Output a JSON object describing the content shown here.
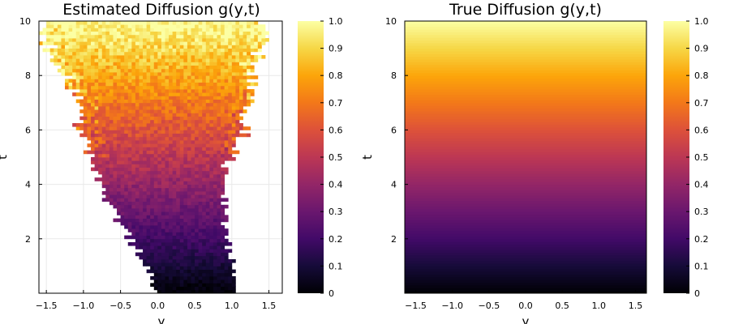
{
  "chart_data": [
    {
      "type": "heatmap",
      "title": "Estimated Diffusion g(y,t)",
      "xlabel": "y",
      "ylabel": "t",
      "xlim": [
        -1.6,
        1.68
      ],
      "ylim": [
        0,
        10
      ],
      "xticks": [
        "−1.5",
        "−1.0",
        "−0.5",
        "0.0",
        "0.5",
        "1.0",
        "1.5"
      ],
      "xtick_values": [
        -1.5,
        -1.0,
        -0.5,
        0.0,
        0.5,
        1.0,
        1.5
      ],
      "yticks": [
        "2",
        "4",
        "6",
        "8",
        "10"
      ],
      "ytick_values": [
        2,
        4,
        6,
        8,
        10
      ],
      "grid": true,
      "colorbar": {
        "colormap": "inferno",
        "range": [
          0,
          1.0
        ],
        "ticks": [
          "0",
          "0.1",
          "0.2",
          "0.3",
          "0.4",
          "0.5",
          "0.6",
          "0.7",
          "0.8",
          "0.9",
          "1.0"
        ]
      },
      "value_function": "g = t/10 with noise",
      "support_envelope": {
        "t": [
          0,
          1,
          2,
          3,
          4,
          5,
          6,
          7,
          8,
          9,
          10
        ],
        "y_min": [
          0.0,
          -0.1,
          -0.35,
          -0.55,
          -0.75,
          -0.85,
          -1.0,
          -1.05,
          -1.2,
          -1.45,
          -1.5
        ],
        "y_max": [
          1.05,
          1.0,
          0.9,
          0.85,
          0.85,
          0.95,
          1.15,
          1.2,
          1.25,
          1.35,
          1.4
        ]
      }
    },
    {
      "type": "heatmap",
      "title": "True Diffusion g(y,t)",
      "xlabel": "y",
      "ylabel": "t",
      "xlim": [
        -1.65,
        1.65
      ],
      "ylim": [
        0,
        10
      ],
      "xticks": [
        "−1.5",
        "−1.0",
        "−0.5",
        "0.0",
        "0.5",
        "1.0",
        "1.5"
      ],
      "xtick_values": [
        -1.5,
        -1.0,
        -0.5,
        0.0,
        0.5,
        1.0,
        1.5
      ],
      "yticks": [
        "2",
        "4",
        "6",
        "8",
        "10"
      ],
      "ytick_values": [
        2,
        4,
        6,
        8,
        10
      ],
      "grid": false,
      "colorbar": {
        "colormap": "inferno",
        "range": [
          0,
          1.0
        ],
        "ticks": [
          "0",
          "0.1",
          "0.2",
          "0.3",
          "0.4",
          "0.5",
          "0.6",
          "0.7",
          "0.8",
          "0.9",
          "1.0"
        ]
      },
      "value_function": "g = t/10"
    }
  ]
}
